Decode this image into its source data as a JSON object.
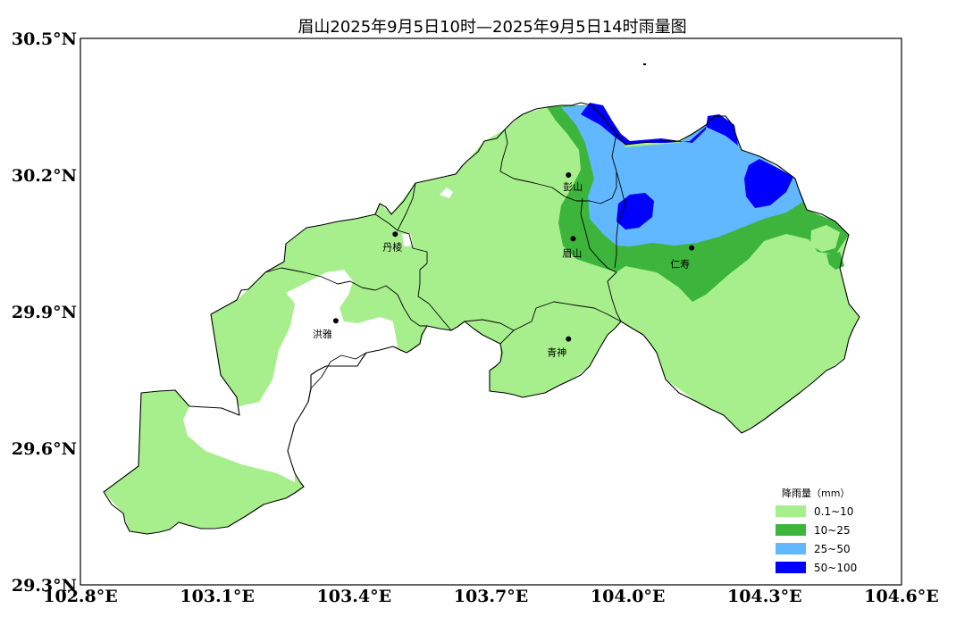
{
  "title": "眉山2025年9月5日10时—2025年9月5日14时雨量图",
  "axes": {
    "y_ticks": [
      "30.5°N",
      "30.2°N",
      "29.9°N",
      "29.6°N",
      "29.3°N"
    ],
    "x_ticks": [
      "102.8°E",
      "103.1°E",
      "103.4°E",
      "103.7°E",
      "104.0°E",
      "104.3°E",
      "104.6°E"
    ],
    "lon_range": [
      102.8,
      104.6
    ],
    "lat_range": [
      29.3,
      30.5
    ]
  },
  "cities": [
    {
      "name": "彭山",
      "lon": 103.87,
      "lat": 30.2
    },
    {
      "name": "丹棱",
      "lon": 103.49,
      "lat": 30.07
    },
    {
      "name": "眉山",
      "lon": 103.88,
      "lat": 30.06
    },
    {
      "name": "仁寿",
      "lon": 104.14,
      "lat": 30.04
    },
    {
      "name": "洪雅",
      "lon": 103.36,
      "lat": 29.88
    },
    {
      "name": "青神",
      "lon": 103.87,
      "lat": 29.84
    }
  ],
  "legend": {
    "title": "降雨量（mm）",
    "items": [
      {
        "label": "0.1~10",
        "color": "#a6ef8c"
      },
      {
        "label": "10~25",
        "color": "#3db53d"
      },
      {
        "label": "25~50",
        "color": "#61b8ff"
      },
      {
        "label": "50~100",
        "color": "#0000fe"
      }
    ]
  },
  "colors": {
    "light_green": "#a6ef8c",
    "green": "#3db53d",
    "light_blue": "#61b8ff",
    "blue": "#0000fe"
  }
}
